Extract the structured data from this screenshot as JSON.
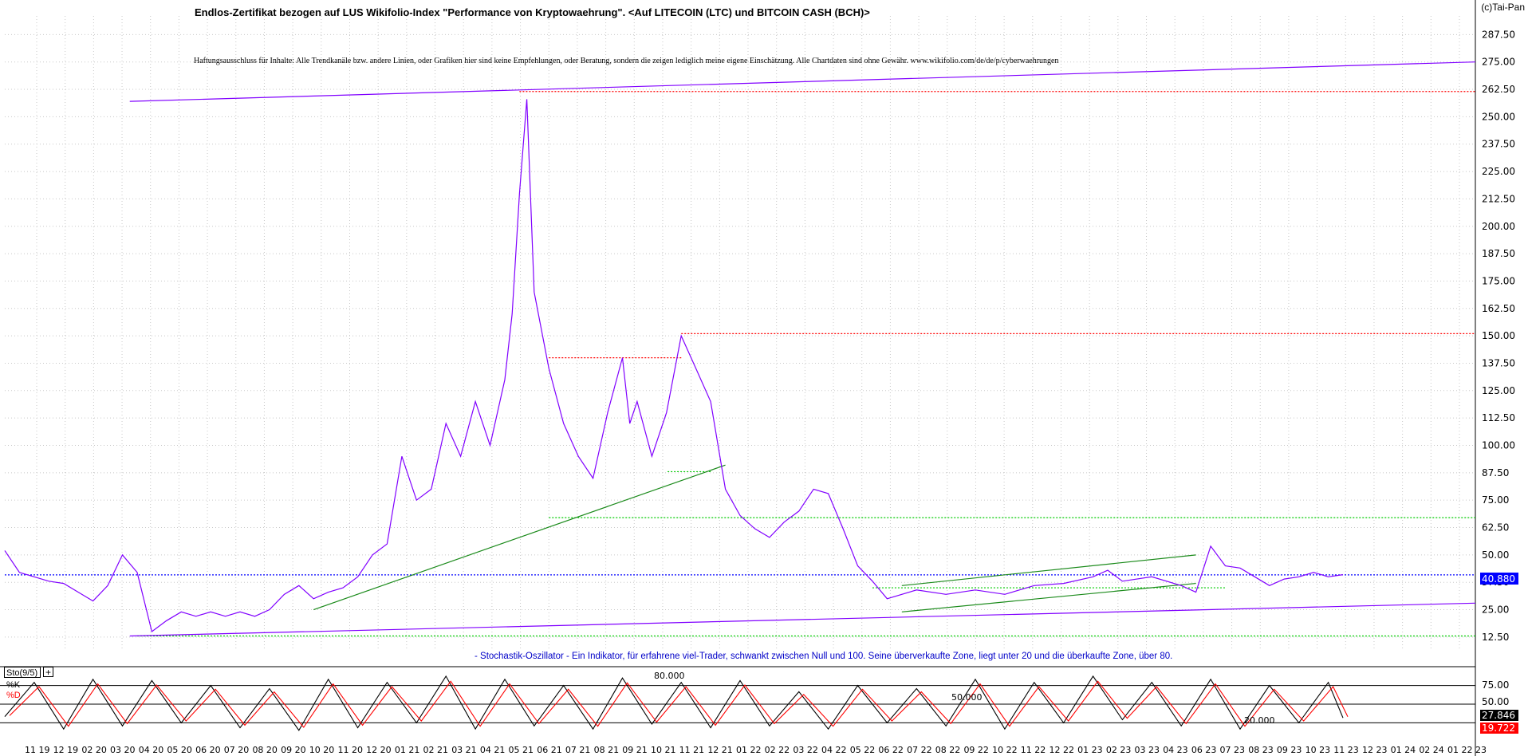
{
  "header": {
    "title": "Endlos-Zertifikat bezogen auf LUS Wikifolio-Index \"Performance von Kryptowaehrung\". <Auf LITECOIN (LTC) und BITCOIN CASH (BCH)>",
    "disclaimer": "Haftungsausschluss für Inhalte: Alle Trendkanäle bzw. andere Linien, oder Grafiken hier sind keine Empfehlungen, oder Beratung, sondern die zeigen lediglich meine eigene Einschätzung. Alle Chartdaten sind ohne Gewähr. www.wikifolio.com/de/de/p/cyberwaehrungen",
    "copyright": "(c)Tai-Pan"
  },
  "indicator": {
    "box_label": "Sto(9/5)",
    "plus": "+",
    "k_label": "%K",
    "d_label": "%D",
    "description": "- Stochastik-Oszillator - Ein Indikator, für erfahrene viel-Trader, schwankt zwischen Null und 100. Seine überverkaufte Zone, liegt unter 20 und die überkaufte Zone, über 80.",
    "level_80": "80.000",
    "level_50": "50.000",
    "level_20": "20.000",
    "y_ticks": [
      "75.00",
      "50.00"
    ],
    "k_value": "27.846",
    "d_value": "19.722"
  },
  "chart_data": {
    "type": "line",
    "price_axis_ticks": [
      287.5,
      275.0,
      262.5,
      250.0,
      237.5,
      225.0,
      212.5,
      200.0,
      187.5,
      175.0,
      162.5,
      150.0,
      137.5,
      125.0,
      112.5,
      100.0,
      87.5,
      75.0,
      62.5,
      50.0,
      37.5,
      25.0,
      12.5
    ],
    "price_tick_labels": [
      "287.50",
      "275.00",
      "262.50",
      "250.00",
      "237.50",
      "225.00",
      "212.50",
      "200.00",
      "187.50",
      "175.00",
      "162.50",
      "150.00",
      "137.50",
      "125.00",
      "112.50",
      "100.00",
      "87.50",
      "75.00",
      "62.50",
      "50.00",
      "37.50",
      "25.00",
      "12.50"
    ],
    "ylim": [
      7,
      296
    ],
    "last_price": "40.880",
    "x_tick_labels": [
      "11 19",
      "12 19",
      "02 20",
      "03 20",
      "04 20",
      "05 20",
      "06 20",
      "07 20",
      "08 20",
      "09 20",
      "10 20",
      "11 20",
      "12 20",
      "01 21",
      "02 21",
      "03 21",
      "04 21",
      "05 21",
      "06 21",
      "07 21",
      "08 21",
      "09 21",
      "10 21",
      "11 21",
      "12 21",
      "01 22",
      "02 22",
      "03 22",
      "04 22",
      "05 22",
      "06 22",
      "07 22",
      "08 22",
      "09 22",
      "10 22",
      "11 22",
      "12 22",
      "01 23",
      "02 23",
      "03 23",
      "04 23",
      "06 23",
      "07 23",
      "08 23",
      "09 23",
      "10 23",
      "11 23",
      "12 23",
      "01 24",
      "02 24",
      "01 22 23"
    ],
    "price_series": [
      [
        0,
        52
      ],
      [
        0.01,
        42
      ],
      [
        0.02,
        40
      ],
      [
        0.03,
        38
      ],
      [
        0.04,
        37
      ],
      [
        0.05,
        33
      ],
      [
        0.06,
        29
      ],
      [
        0.07,
        36
      ],
      [
        0.08,
        50
      ],
      [
        0.09,
        42
      ],
      [
        0.1,
        15
      ],
      [
        0.11,
        20
      ],
      [
        0.12,
        24
      ],
      [
        0.13,
        22
      ],
      [
        0.14,
        24
      ],
      [
        0.15,
        22
      ],
      [
        0.16,
        24
      ],
      [
        0.17,
        22
      ],
      [
        0.18,
        25
      ],
      [
        0.19,
        32
      ],
      [
        0.2,
        36
      ],
      [
        0.21,
        30
      ],
      [
        0.22,
        33
      ],
      [
        0.23,
        35
      ],
      [
        0.24,
        40
      ],
      [
        0.25,
        50
      ],
      [
        0.26,
        55
      ],
      [
        0.27,
        95
      ],
      [
        0.28,
        75
      ],
      [
        0.29,
        80
      ],
      [
        0.3,
        110
      ],
      [
        0.31,
        95
      ],
      [
        0.32,
        120
      ],
      [
        0.33,
        100
      ],
      [
        0.34,
        130
      ],
      [
        0.345,
        160
      ],
      [
        0.35,
        215
      ],
      [
        0.355,
        258
      ],
      [
        0.36,
        170
      ],
      [
        0.37,
        135
      ],
      [
        0.38,
        110
      ],
      [
        0.39,
        95
      ],
      [
        0.4,
        85
      ],
      [
        0.41,
        115
      ],
      [
        0.42,
        140
      ],
      [
        0.425,
        110
      ],
      [
        0.43,
        120
      ],
      [
        0.44,
        95
      ],
      [
        0.45,
        115
      ],
      [
        0.46,
        150
      ],
      [
        0.47,
        135
      ],
      [
        0.48,
        120
      ],
      [
        0.49,
        80
      ],
      [
        0.5,
        68
      ],
      [
        0.51,
        62
      ],
      [
        0.52,
        58
      ],
      [
        0.53,
        65
      ],
      [
        0.54,
        70
      ],
      [
        0.55,
        80
      ],
      [
        0.56,
        78
      ],
      [
        0.57,
        62
      ],
      [
        0.58,
        45
      ],
      [
        0.59,
        38
      ],
      [
        0.6,
        30
      ],
      [
        0.62,
        34
      ],
      [
        0.64,
        32
      ],
      [
        0.66,
        34
      ],
      [
        0.68,
        32
      ],
      [
        0.7,
        36
      ],
      [
        0.72,
        37
      ],
      [
        0.74,
        40
      ],
      [
        0.75,
        43
      ],
      [
        0.76,
        38
      ],
      [
        0.78,
        40
      ],
      [
        0.8,
        36
      ],
      [
        0.81,
        33
      ],
      [
        0.82,
        54
      ],
      [
        0.83,
        45
      ],
      [
        0.84,
        44
      ],
      [
        0.85,
        40
      ],
      [
        0.86,
        36
      ],
      [
        0.87,
        39
      ],
      [
        0.88,
        40
      ],
      [
        0.89,
        42
      ],
      [
        0.9,
        40
      ],
      [
        0.91,
        41
      ]
    ],
    "stoch_series": [
      [
        0,
        30
      ],
      [
        0.02,
        85
      ],
      [
        0.04,
        10
      ],
      [
        0.06,
        90
      ],
      [
        0.08,
        15
      ],
      [
        0.1,
        88
      ],
      [
        0.12,
        20
      ],
      [
        0.14,
        80
      ],
      [
        0.16,
        12
      ],
      [
        0.18,
        75
      ],
      [
        0.2,
        8
      ],
      [
        0.22,
        90
      ],
      [
        0.24,
        12
      ],
      [
        0.26,
        85
      ],
      [
        0.28,
        20
      ],
      [
        0.3,
        95
      ],
      [
        0.32,
        10
      ],
      [
        0.34,
        90
      ],
      [
        0.36,
        15
      ],
      [
        0.38,
        80
      ],
      [
        0.4,
        10
      ],
      [
        0.42,
        92
      ],
      [
        0.44,
        18
      ],
      [
        0.46,
        85
      ],
      [
        0.48,
        12
      ],
      [
        0.5,
        88
      ],
      [
        0.52,
        15
      ],
      [
        0.54,
        70
      ],
      [
        0.56,
        10
      ],
      [
        0.58,
        80
      ],
      [
        0.6,
        20
      ],
      [
        0.62,
        75
      ],
      [
        0.64,
        15
      ],
      [
        0.66,
        90
      ],
      [
        0.68,
        10
      ],
      [
        0.7,
        85
      ],
      [
        0.72,
        20
      ],
      [
        0.74,
        95
      ],
      [
        0.76,
        25
      ],
      [
        0.78,
        85
      ],
      [
        0.8,
        15
      ],
      [
        0.82,
        90
      ],
      [
        0.84,
        10
      ],
      [
        0.86,
        80
      ],
      [
        0.88,
        20
      ],
      [
        0.9,
        85
      ],
      [
        0.91,
        28
      ]
    ]
  },
  "colors": {
    "price_line": "#8000ff",
    "trendline_green": "#1a8a1a",
    "channel_purple": "#8000ff",
    "red_dotted": "#ff0000",
    "green_dotted": "#00cc00",
    "blue_dotted": "#0000ff",
    "sto_k": "#000000",
    "sto_d": "#ff0000"
  }
}
